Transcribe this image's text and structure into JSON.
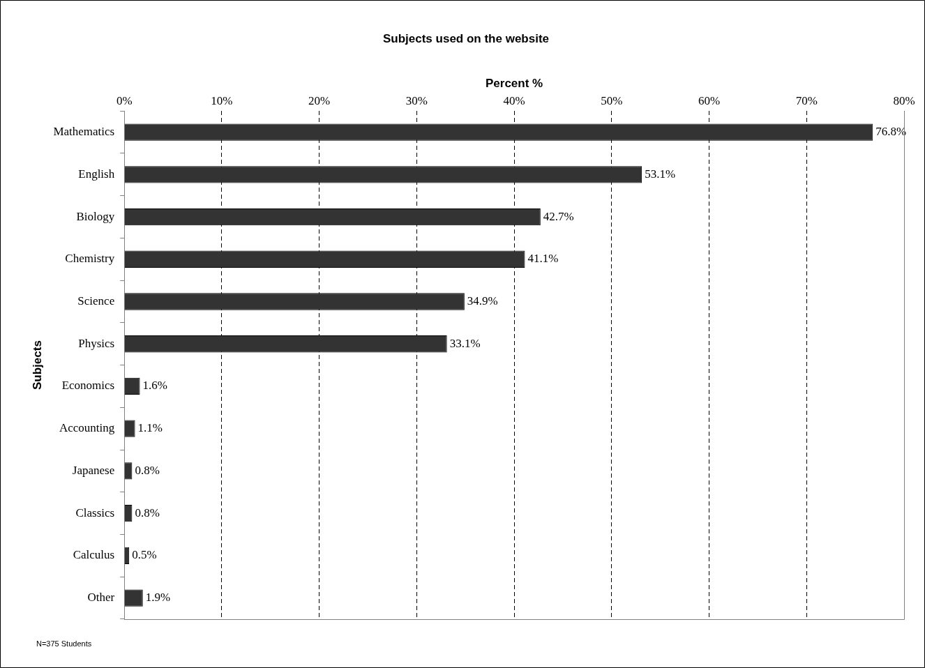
{
  "chart_data": {
    "type": "bar",
    "orientation": "horizontal",
    "title": "Subjects used on the website",
    "xlabel": "Percent %",
    "ylabel": "Subjects",
    "categories": [
      "Mathematics",
      "English",
      "Biology",
      "Chemistry",
      "Science",
      "Physics",
      "Economics",
      "Accounting",
      "Japanese",
      "Classics",
      "Calculus",
      "Other"
    ],
    "values": [
      76.8,
      53.1,
      42.7,
      41.1,
      34.9,
      33.1,
      1.6,
      1.1,
      0.8,
      0.8,
      0.5,
      1.9
    ],
    "value_labels": [
      "76.8%",
      "53.1%",
      "42.7%",
      "41.1%",
      "34.9%",
      "33.1%",
      "1.6%",
      "1.1%",
      "0.8%",
      "0.8%",
      "0.5%",
      "1.9%"
    ],
    "color": "#333333",
    "xlim": [
      0,
      80
    ],
    "xticks": [
      {
        "value": 0,
        "label": "0%"
      },
      {
        "value": 10,
        "label": "10%"
      },
      {
        "value": 20,
        "label": "20%"
      },
      {
        "value": 30,
        "label": "30%"
      },
      {
        "value": 40,
        "label": "40%"
      },
      {
        "value": 50,
        "label": "50%"
      },
      {
        "value": 60,
        "label": "60%"
      },
      {
        "value": 70,
        "label": "70%"
      },
      {
        "value": 80,
        "label": "80%"
      }
    ],
    "grid": "x",
    "line_style": "dashed",
    "legend": false,
    "annotations": [
      "N=375 Students"
    ]
  }
}
